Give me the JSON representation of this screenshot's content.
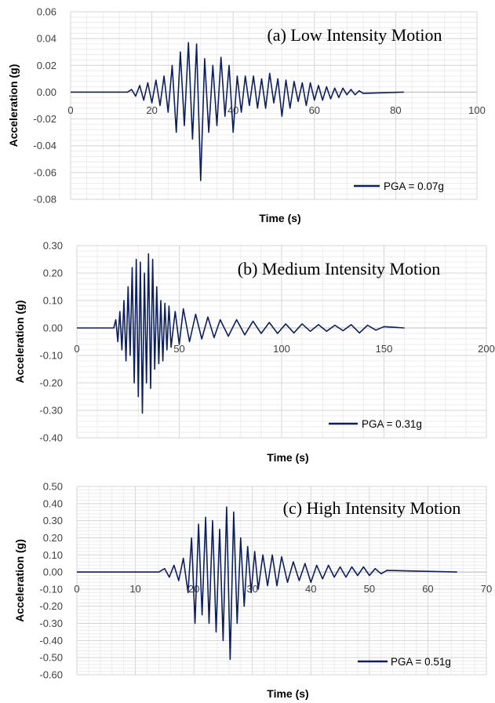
{
  "chart_data": [
    {
      "type": "line",
      "title": "(a)  Low Intensity Motion",
      "xlabel": "Time (s)",
      "ylabel": "Acceleration (g)",
      "xlim": [
        0,
        100
      ],
      "ylim": [
        -0.08,
        0.06
      ],
      "xticks": [
        "0",
        "20",
        "40",
        "60",
        "80",
        "100"
      ],
      "yticks": [
        "0.06",
        "0.04",
        "0.02",
        "0.00",
        "-0.02",
        "-0.04",
        "-0.06",
        "-0.08"
      ],
      "series": [
        {
          "name": "PGA = 0.07g",
          "color": "#0d1f5c",
          "x": [
            0,
            14,
            15,
            16,
            17,
            18,
            19,
            20,
            21,
            22,
            23,
            24,
            25,
            26,
            27,
            28,
            29,
            30,
            31,
            32,
            33,
            34,
            35,
            36,
            37,
            38,
            39,
            40,
            41,
            42,
            43,
            44,
            45,
            46,
            47,
            48,
            49,
            50,
            51,
            52,
            53,
            54,
            55,
            56,
            57,
            58,
            59,
            60,
            61,
            62,
            63,
            64,
            65,
            66,
            67,
            68,
            69,
            70,
            71,
            72,
            82
          ],
          "y": [
            0,
            0,
            0.002,
            -0.003,
            0.005,
            -0.006,
            0.007,
            -0.008,
            0.009,
            -0.01,
            0.012,
            -0.015,
            0.02,
            -0.03,
            0.03,
            -0.025,
            0.037,
            -0.035,
            0.036,
            -0.066,
            0.025,
            -0.03,
            0.02,
            -0.025,
            0.026,
            -0.018,
            0.02,
            -0.03,
            0.012,
            -0.015,
            0.012,
            -0.01,
            0.012,
            -0.012,
            0.01,
            -0.012,
            0.014,
            -0.008,
            0.01,
            -0.018,
            0.009,
            -0.012,
            0.008,
            -0.007,
            0.007,
            -0.01,
            0.007,
            -0.006,
            0.005,
            -0.006,
            0.004,
            -0.005,
            0.003,
            -0.004,
            0.003,
            -0.002,
            0.002,
            -0.002,
            0.001,
            -0.001,
            0
          ]
        }
      ]
    },
    {
      "type": "line",
      "title": "(b)  Medium Intensity Motion",
      "xlabel": "Time (s)",
      "ylabel": "Acceleration (g)",
      "xlim": [
        0,
        200
      ],
      "ylim": [
        -0.4,
        0.3
      ],
      "xticks": [
        "0",
        "50",
        "100",
        "150",
        "200"
      ],
      "yticks": [
        "0.30",
        "0.20",
        "0.10",
        "0.00",
        "-0.10",
        "-0.20",
        "-0.30",
        "-0.40"
      ],
      "series": [
        {
          "name": "PGA = 0.31g",
          "color": "#0d1f5c",
          "x": [
            0,
            18,
            19,
            20,
            21,
            22,
            23,
            24,
            25,
            26,
            27,
            28,
            29,
            30,
            31,
            32,
            33,
            34,
            35,
            36,
            37,
            38,
            39,
            40,
            41,
            42,
            43,
            44,
            45,
            46,
            48,
            50,
            52,
            55,
            58,
            61,
            64,
            67,
            70,
            74,
            78,
            82,
            86,
            90,
            94,
            98,
            102,
            106,
            110,
            114,
            118,
            122,
            126,
            130,
            134,
            138,
            142,
            146,
            150,
            160
          ],
          "y": [
            0,
            0,
            0.03,
            -0.05,
            0.06,
            -0.08,
            0.1,
            -0.12,
            0.15,
            -0.1,
            0.22,
            -0.2,
            0.25,
            -0.25,
            0.24,
            -0.31,
            0.2,
            -0.2,
            0.27,
            -0.22,
            0.25,
            -0.15,
            0.15,
            -0.13,
            0.1,
            -0.12,
            0.09,
            -0.08,
            0.08,
            -0.07,
            0.06,
            -0.06,
            0.07,
            -0.05,
            0.05,
            -0.04,
            0.04,
            -0.035,
            0.03,
            -0.03,
            0.03,
            -0.025,
            0.025,
            -0.02,
            0.02,
            -0.02,
            0.015,
            -0.018,
            0.015,
            -0.012,
            0.012,
            -0.012,
            0.01,
            -0.01,
            0.012,
            -0.018,
            0.01,
            -0.008,
            0.005,
            0
          ]
        }
      ]
    },
    {
      "type": "line",
      "title": "(c)  High Intensity Motion",
      "xlabel": "Time (s)",
      "ylabel": "Acceleration (g)",
      "xlim": [
        0,
        70
      ],
      "ylim": [
        -0.6,
        0.5
      ],
      "xticks": [
        "0",
        "10",
        "20",
        "30",
        "40",
        "50",
        "60",
        "70"
      ],
      "yticks": [
        "0.50",
        "0.40",
        "0.30",
        "0.20",
        "0.10",
        "0.00",
        "-0.10",
        "-0.20",
        "-0.30",
        "-0.40",
        "-0.50",
        "-0.60"
      ],
      "series": [
        {
          "name": "PGA = 0.51g",
          "color": "#0d1f5c",
          "x": [
            0,
            14,
            15,
            15.8,
            16.6,
            17.4,
            18.2,
            19,
            19.6,
            20.2,
            20.8,
            21.4,
            22,
            22.6,
            23.2,
            23.8,
            24.4,
            25,
            25.6,
            26.2,
            26.8,
            27.4,
            28,
            28.6,
            29.2,
            29.8,
            30.4,
            31,
            31.8,
            32.6,
            33.4,
            34.2,
            35,
            36,
            37,
            38,
            39,
            40,
            41,
            42,
            43,
            44,
            45,
            46,
            47,
            48,
            49,
            50,
            51,
            52,
            53,
            65
          ],
          "y": [
            0,
            0,
            0.02,
            -0.03,
            0.04,
            -0.05,
            0.08,
            -0.12,
            0.2,
            -0.3,
            0.28,
            -0.25,
            0.32,
            -0.3,
            0.3,
            -0.35,
            0.25,
            -0.4,
            0.38,
            -0.51,
            0.35,
            -0.3,
            0.2,
            -0.2,
            0.15,
            -0.12,
            0.12,
            -0.1,
            0.1,
            -0.08,
            0.1,
            -0.08,
            0.09,
            -0.06,
            0.06,
            -0.05,
            0.05,
            -0.06,
            0.04,
            -0.04,
            0.04,
            -0.03,
            0.03,
            -0.03,
            0.03,
            -0.02,
            0.03,
            -0.02,
            0.02,
            -0.01,
            0.01,
            0
          ]
        }
      ]
    }
  ]
}
